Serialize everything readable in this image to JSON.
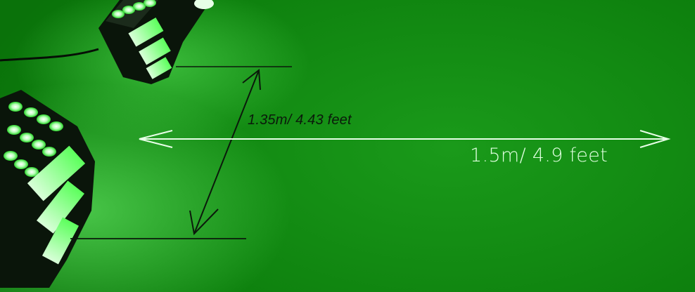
{
  "image": {
    "subject": "green LED wall-washer lights on a floor with distance measurements"
  },
  "measurements": {
    "vertical_label": "1.35m/ 4.43 feet",
    "horizontal_label": "1.5m/ 4.9 feet"
  },
  "colors": {
    "background": "#0f8a0f",
    "led_glow": "#c8ffc8",
    "fixture_body": "#0d1a0d",
    "vertical_line": "#0b1a0b",
    "horizontal_line": "#e8ffe8"
  }
}
